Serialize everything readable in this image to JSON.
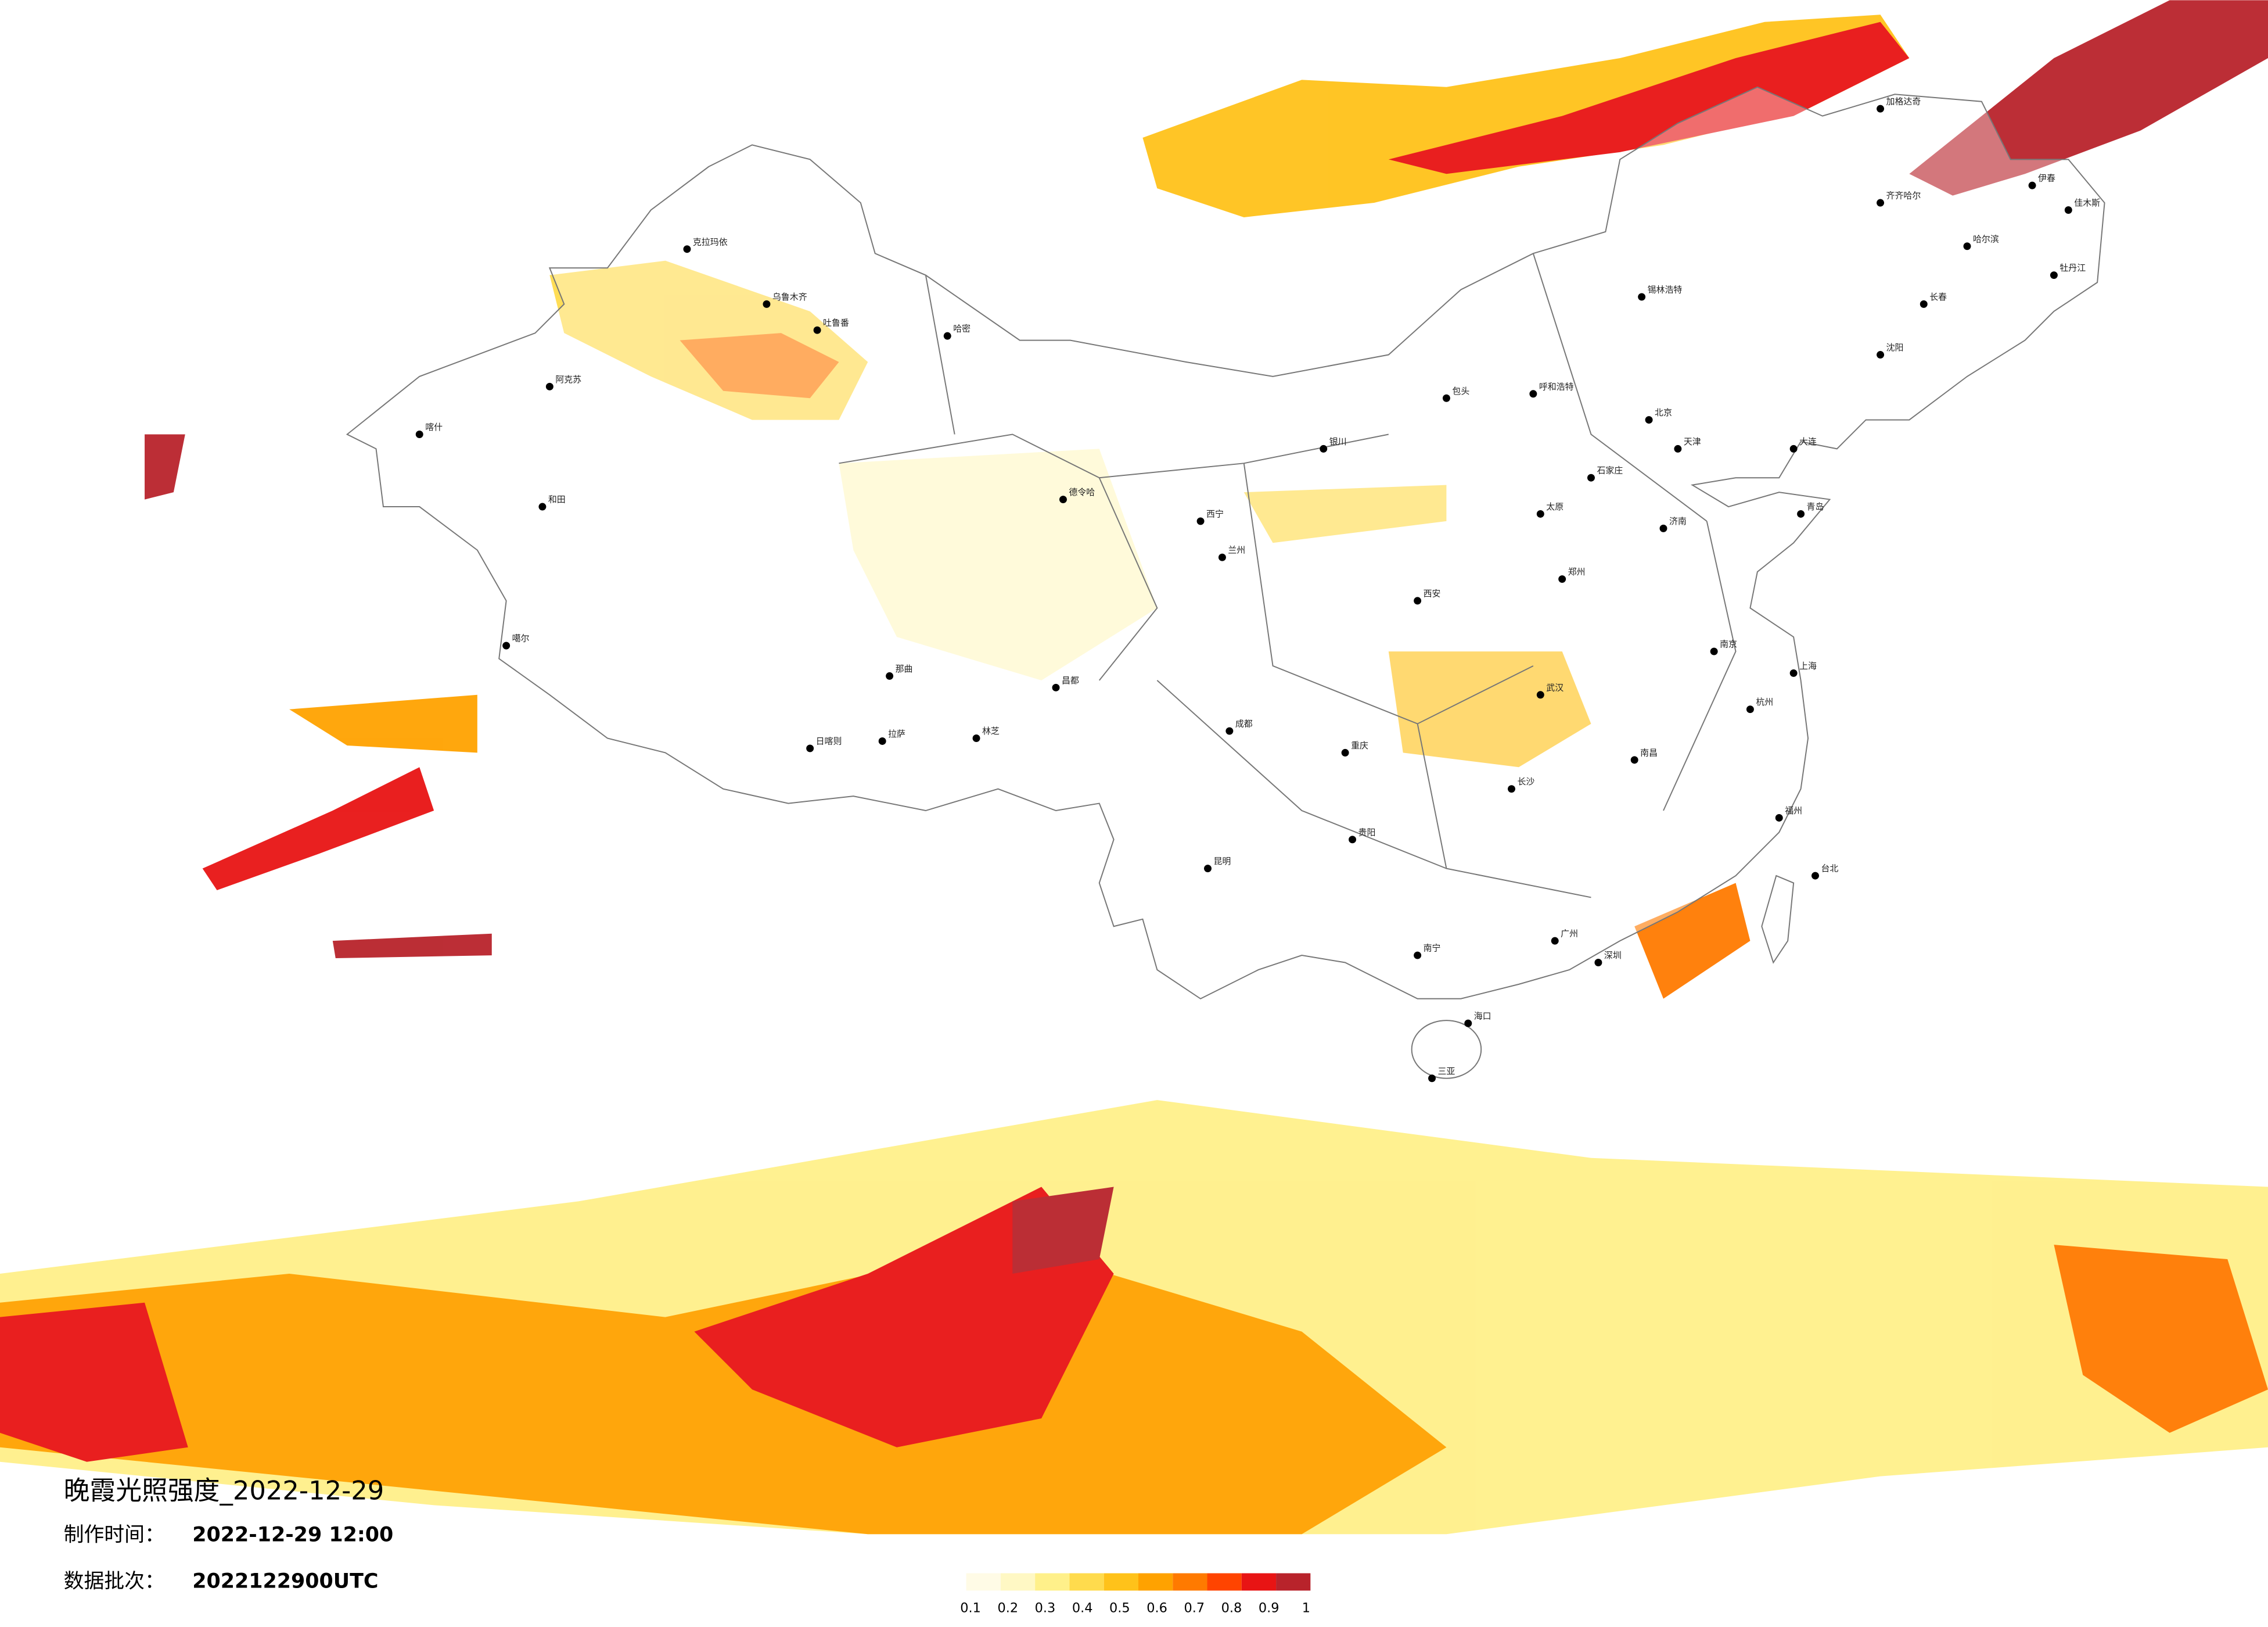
{
  "header": {
    "title": "晚霞光照强度_2022-12-29",
    "made_label": "制作时间：",
    "made_time": "2022-12-29 12:00",
    "batch_label": "数据批次：",
    "batch": "2022122900UTC"
  },
  "legend": {
    "ticks": [
      0.1,
      0.2,
      0.3,
      0.4,
      0.5,
      0.6,
      0.7,
      0.8,
      0.9,
      1
    ],
    "colors": [
      "#fffbe6",
      "#fff8c4",
      "#fff08a",
      "#ffdb4d",
      "#ffc21a",
      "#ffa200",
      "#ff7a00",
      "#ff4400",
      "#e81414",
      "#b8232b"
    ]
  },
  "map": {
    "cities": [
      "克拉玛依",
      "乌鲁木齐",
      "吐鲁番",
      "阿克苏",
      "和田",
      "哈密",
      "喀什",
      "噶尔",
      "日喀则",
      "拉萨",
      "那曲",
      "林芝",
      "昌都",
      "德令哈",
      "西宁",
      "兰州",
      "银川",
      "呼和浩特",
      "包头",
      "太原",
      "石家庄",
      "北京",
      "天津",
      "郑州",
      "西安",
      "成都",
      "重庆",
      "贵阳",
      "昆明",
      "南宁",
      "广州",
      "深圳",
      "海口",
      "三亚",
      "长沙",
      "武汉",
      "南昌",
      "福州",
      "台北",
      "杭州",
      "上海",
      "南京",
      "济南",
      "青岛",
      "沈阳",
      "长春",
      "哈尔滨",
      "锡林浩特",
      "齐齐哈尔",
      "加格达奇",
      "伊春",
      "佳木斯",
      "牡丹江",
      "大连"
    ]
  }
}
